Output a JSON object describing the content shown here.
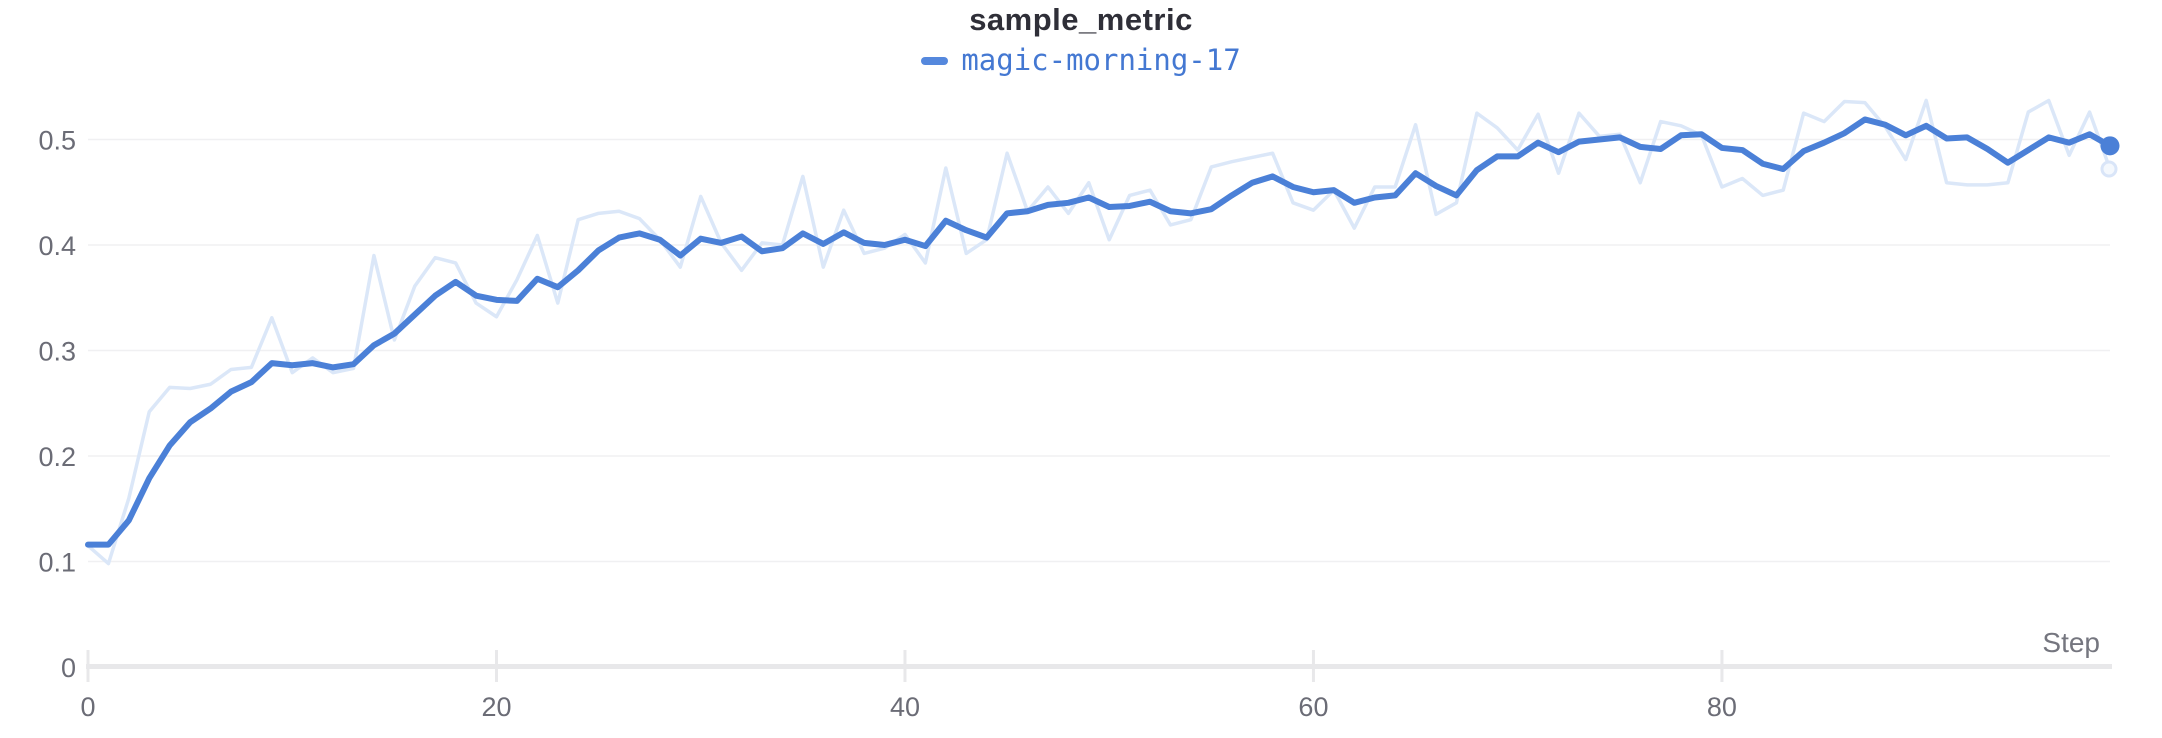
{
  "header": {
    "title": "sample_metric"
  },
  "legend": {
    "series_label": "magic-morning-17",
    "swatch_color": "#5588dd",
    "text_color": "#4478d2"
  },
  "axes": {
    "x_label": "Step",
    "x_ticks": [
      {
        "label": "0",
        "value": 0
      },
      {
        "label": "20",
        "value": 20
      },
      {
        "label": "40",
        "value": 40
      },
      {
        "label": "60",
        "value": 60
      },
      {
        "label": "80",
        "value": 80
      }
    ],
    "y_ticks": [
      {
        "label": "0.5",
        "value": 0.5
      },
      {
        "label": "0.4",
        "value": 0.4
      },
      {
        "label": "0.3",
        "value": 0.3
      },
      {
        "label": "0.2",
        "value": 0.2
      },
      {
        "label": "0.1",
        "value": 0.1
      },
      {
        "label": "0",
        "value": 0
      }
    ]
  },
  "colors": {
    "grid": "#f0f0f2",
    "axis": "#e8e8ea",
    "tick_label": "#6b6c76",
    "x_axis_label": "#75767f",
    "title": "#2f2f38",
    "raw_line": "#dbe7f8",
    "smoothed_line": "#4b80d7",
    "ring_fill": "#f4f8fd",
    "ring_stroke": "#d9e5f8"
  },
  "chart_data": {
    "type": "line",
    "title": "sample_metric",
    "xlabel": "Step",
    "ylabel": "",
    "x_range": [
      0,
      99
    ],
    "x_interval": 1,
    "ylim": [
      0,
      0.547
    ],
    "grid": "horizontal-only",
    "legend_position": "top-center",
    "series": [
      {
        "name": "magic-morning-17 (raw, unsmoothed)",
        "role": "raw",
        "values": [
          0.115,
          0.098,
          0.16,
          0.242,
          0.265,
          0.264,
          0.268,
          0.282,
          0.284,
          0.331,
          0.279,
          0.293,
          0.279,
          0.283,
          0.39,
          0.31,
          0.361,
          0.388,
          0.383,
          0.345,
          0.332,
          0.367,
          0.409,
          0.345,
          0.424,
          0.43,
          0.432,
          0.425,
          0.405,
          0.379,
          0.446,
          0.402,
          0.376,
          0.402,
          0.4,
          0.465,
          0.379,
          0.433,
          0.392,
          0.397,
          0.41,
          0.383,
          0.473,
          0.392,
          0.405,
          0.487,
          0.432,
          0.455,
          0.43,
          0.459,
          0.405,
          0.447,
          0.452,
          0.419,
          0.424,
          0.474,
          0.479,
          0.483,
          0.487,
          0.44,
          0.433,
          0.452,
          0.416,
          0.455,
          0.455,
          0.514,
          0.429,
          0.44,
          0.525,
          0.511,
          0.49,
          0.524,
          0.468,
          0.525,
          0.503,
          0.505,
          0.459,
          0.517,
          0.513,
          0.504,
          0.455,
          0.463,
          0.447,
          0.452,
          0.525,
          0.517,
          0.536,
          0.535,
          0.512,
          0.481,
          0.537,
          0.459,
          0.457,
          0.457,
          0.459,
          0.526,
          0.537,
          0.485,
          0.526,
          0.472
        ]
      },
      {
        "name": "magic-morning-17",
        "role": "smoothed",
        "values": [
          0.116,
          0.116,
          0.139,
          0.179,
          0.21,
          0.232,
          0.245,
          0.261,
          0.27,
          0.288,
          0.286,
          0.288,
          0.284,
          0.287,
          0.305,
          0.316,
          0.334,
          0.352,
          0.365,
          0.352,
          0.348,
          0.347,
          0.368,
          0.36,
          0.376,
          0.395,
          0.407,
          0.411,
          0.405,
          0.39,
          0.406,
          0.402,
          0.408,
          0.394,
          0.397,
          0.411,
          0.401,
          0.412,
          0.402,
          0.4,
          0.405,
          0.399,
          0.423,
          0.414,
          0.407,
          0.43,
          0.432,
          0.438,
          0.44,
          0.445,
          0.436,
          0.437,
          0.441,
          0.432,
          0.43,
          0.434,
          0.447,
          0.459,
          0.465,
          0.455,
          0.45,
          0.452,
          0.44,
          0.445,
          0.447,
          0.468,
          0.456,
          0.447,
          0.471,
          0.484,
          0.484,
          0.497,
          0.488,
          0.498,
          0.5,
          0.502,
          0.493,
          0.491,
          0.504,
          0.505,
          0.492,
          0.49,
          0.477,
          0.472,
          0.489,
          0.497,
          0.506,
          0.519,
          0.514,
          0.504,
          0.513,
          0.501,
          0.502,
          0.491,
          0.478,
          0.49,
          0.502,
          0.497,
          0.505,
          0.494
        ]
      }
    ],
    "end_markers": [
      {
        "series": "raw",
        "step": 99,
        "value": 0.472,
        "style": "ring"
      },
      {
        "series": "smoothed",
        "step": 99,
        "value": 0.494,
        "style": "dot"
      }
    ]
  }
}
